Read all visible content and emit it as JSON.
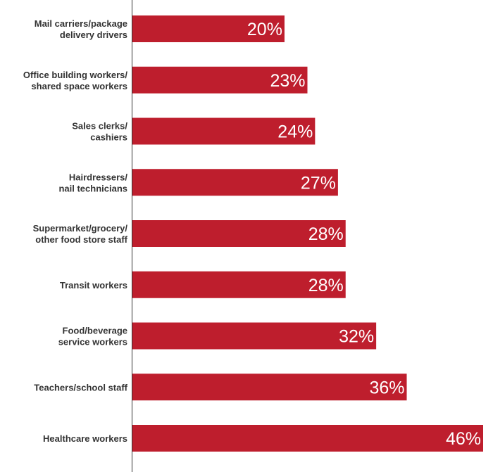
{
  "colors": {
    "bar": "#be1e2d",
    "axis": "#333333",
    "label": "#333333",
    "value_text": "#ffffff"
  },
  "chart_data": {
    "type": "bar",
    "orientation": "horizontal",
    "title": "",
    "xlabel": "",
    "ylabel": "",
    "xlim": [
      0,
      46
    ],
    "grid": false,
    "categories": [
      [
        "Mail carriers/package",
        "delivery drivers"
      ],
      [
        "Office building workers/",
        "shared space workers"
      ],
      [
        "Sales clerks/",
        "cashiers"
      ],
      [
        "Hairdressers/",
        "nail technicians"
      ],
      [
        "Supermarket/grocery/",
        "other food store staff"
      ],
      [
        "Transit workers"
      ],
      [
        "Food/beverage",
        "service workers"
      ],
      [
        "Teachers/school staff"
      ],
      [
        "Healthcare workers"
      ]
    ],
    "values": [
      20,
      23,
      24,
      27,
      28,
      28,
      32,
      36,
      46
    ],
    "value_labels": [
      "20%",
      "23%",
      "24%",
      "27%",
      "28%",
      "28%",
      "32%",
      "36%",
      "46%"
    ]
  }
}
